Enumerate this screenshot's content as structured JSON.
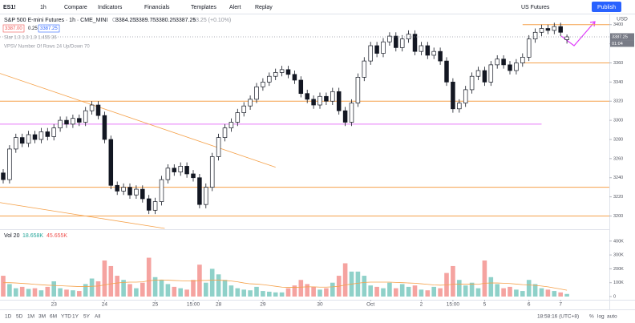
{
  "toolbar": {
    "symbol": "ES1!",
    "interval": "1h",
    "items": [
      "Compare",
      "Indicators",
      "Financials",
      "Templates",
      "Alert",
      "Replay"
    ],
    "market": "US Futures",
    "publish": "Publish"
  },
  "legend": {
    "title": "S&P 500 E-mini Futures · 1h · CME_MINI",
    "ohlc_letters": [
      "O",
      "H",
      "L",
      "C"
    ],
    "change": "+3.25 (+0.10%)",
    "bid": "3387.00",
    "spread": "0.25",
    "indicator_1": "Slar 1.3 1.3 1.3 1.455 36",
    "indicator_2": "VPSV Number Of Rows 24 Up/Down 70"
  },
  "bottom_bar": {
    "ranges": [
      "1D",
      "5D",
      "1M",
      "3M",
      "6M",
      "YTD",
      "1Y",
      "5Y",
      "All"
    ],
    "clock": "18:58:16 (UTC+8)",
    "scale_options": [
      "%",
      "log",
      "auto"
    ]
  },
  "chart_data": {
    "type": "candlestick",
    "currency": "USD",
    "countdown": "01:04",
    "ylim": [
      3187,
      3409
    ],
    "yticks": [
      3200,
      3220,
      3240,
      3260,
      3280,
      3300,
      3320,
      3340,
      3360,
      3380,
      3400
    ],
    "xticks": [
      {
        "value": 8,
        "label": "23"
      },
      {
        "value": 16,
        "label": "24"
      },
      {
        "value": 24,
        "label": "25"
      },
      {
        "value": 30,
        "label": "15:00"
      },
      {
        "value": 34,
        "label": "28"
      },
      {
        "value": 41,
        "label": "29"
      },
      {
        "value": 50,
        "label": "30"
      },
      {
        "value": 58,
        "label": "Oct"
      },
      {
        "value": 66,
        "label": "2"
      },
      {
        "value": 71,
        "label": "15:00"
      },
      {
        "value": 76,
        "label": "5"
      },
      {
        "value": 83,
        "label": "6"
      },
      {
        "value": 88,
        "label": "7"
      }
    ],
    "open": [
      3245,
      3238,
      3270,
      3282,
      3276,
      3285,
      3280,
      3288,
      3283,
      3292,
      3300,
      3296,
      3302,
      3298,
      3310,
      3316,
      3305,
      3280,
      3232,
      3226,
      3230,
      3222,
      3228,
      3218,
      3206,
      3215,
      3238,
      3250,
      3246,
      3252,
      3244,
      3240,
      3212,
      3230,
      3262,
      3282,
      3292,
      3298,
      3308,
      3315,
      3322,
      3335,
      3340,
      3346,
      3350,
      3353,
      3348,
      3342,
      3328,
      3322,
      3316,
      3325,
      3320,
      3330,
      3310,
      3298,
      3318,
      3345,
      3362,
      3378,
      3370,
      3382,
      3388,
      3376,
      3385,
      3390,
      3372,
      3378,
      3368,
      3372,
      3362,
      3340,
      3312,
      3318,
      3332,
      3346,
      3352,
      3340,
      3358,
      3364,
      3358,
      3352,
      3360,
      3366,
      3385,
      3392,
      3396,
      3394,
      3398,
      3384.25
    ],
    "high": [
      3249,
      3274,
      3286,
      3286,
      3289,
      3289,
      3292,
      3292,
      3296,
      3304,
      3304,
      3306,
      3306,
      3314,
      3320,
      3320,
      3309,
      3284,
      3236,
      3234,
      3234,
      3232,
      3232,
      3222,
      3219,
      3242,
      3254,
      3254,
      3256,
      3256,
      3248,
      3244,
      3234,
      3266,
      3286,
      3296,
      3302,
      3312,
      3319,
      3326,
      3339,
      3344,
      3350,
      3354,
      3357,
      3357,
      3352,
      3346,
      3332,
      3326,
      3329,
      3329,
      3334,
      3334,
      3314,
      3322,
      3349,
      3366,
      3382,
      3382,
      3386,
      3392,
      3392,
      3389,
      3394,
      3394,
      3382,
      3382,
      3376,
      3376,
      3366,
      3344,
      3322,
      3336,
      3350,
      3356,
      3356,
      3362,
      3368,
      3368,
      3362,
      3364,
      3370,
      3389,
      3396,
      3400,
      3400,
      3402,
      3402,
      3389.75
    ],
    "low": [
      3234,
      3234,
      3266,
      3272,
      3272,
      3276,
      3276,
      3279,
      3279,
      3288,
      3292,
      3292,
      3294,
      3294,
      3306,
      3301,
      3276,
      3228,
      3222,
      3222,
      3218,
      3218,
      3214,
      3202,
      3202,
      3211,
      3234,
      3242,
      3242,
      3240,
      3236,
      3208,
      3208,
      3226,
      3258,
      3278,
      3288,
      3294,
      3304,
      3311,
      3318,
      3331,
      3336,
      3342,
      3346,
      3344,
      3338,
      3324,
      3318,
      3312,
      3312,
      3316,
      3316,
      3306,
      3294,
      3294,
      3314,
      3341,
      3358,
      3366,
      3366,
      3378,
      3372,
      3372,
      3381,
      3368,
      3368,
      3364,
      3364,
      3358,
      3336,
      3308,
      3308,
      3314,
      3328,
      3342,
      3336,
      3336,
      3354,
      3354,
      3348,
      3348,
      3356,
      3362,
      3381,
      3388,
      3390,
      3390,
      3388,
      3380.25
    ],
    "close": [
      3238,
      3270,
      3282,
      3276,
      3285,
      3280,
      3288,
      3283,
      3292,
      3300,
      3296,
      3302,
      3298,
      3310,
      3316,
      3305,
      3280,
      3232,
      3226,
      3230,
      3222,
      3228,
      3218,
      3206,
      3215,
      3238,
      3250,
      3246,
      3252,
      3244,
      3240,
      3212,
      3230,
      3262,
      3282,
      3292,
      3298,
      3308,
      3315,
      3322,
      3335,
      3340,
      3346,
      3350,
      3353,
      3348,
      3342,
      3328,
      3322,
      3316,
      3325,
      3320,
      3330,
      3310,
      3298,
      3318,
      3345,
      3362,
      3378,
      3370,
      3382,
      3388,
      3376,
      3385,
      3390,
      3372,
      3378,
      3368,
      3372,
      3362,
      3340,
      3312,
      3318,
      3332,
      3346,
      3352,
      3340,
      3358,
      3364,
      3358,
      3352,
      3360,
      3366,
      3385,
      3392,
      3396,
      3394,
      3398,
      3392,
      3387.25
    ],
    "levels": [
      {
        "value": 3400,
        "color": "#f5a14a",
        "from": 82
      },
      {
        "value": 3360,
        "color": "#f5a14a",
        "from": 82
      },
      {
        "value": 3320,
        "color": "#f5a14a"
      },
      {
        "value": 3230,
        "color": "#f5a14a"
      },
      {
        "value": 3200,
        "color": "#f5a14a"
      },
      {
        "value": 3296,
        "color": "#e879f9",
        "to": 85
      }
    ],
    "trendlines": [
      {
        "from": [
          -0.5,
          3349
        ],
        "to": [
          43,
          3251
        ],
        "color": "#f5a14a"
      },
      {
        "from": [
          -0.5,
          3214
        ],
        "to": [
          25.5,
          3187
        ],
        "color": "#f5a14a"
      }
    ],
    "volume_legend": {
      "name": "Vol 20",
      "value_label": "18.658K",
      "ma_label": "45.655K"
    },
    "vol_ylim": [
      0,
      474000
    ],
    "vol_yticks": [
      {
        "value": 0,
        "label": "0"
      },
      {
        "value": 100000,
        "label": "100K"
      },
      {
        "value": 200000,
        "label": "200K"
      },
      {
        "value": 300000,
        "label": "300K"
      },
      {
        "value": 400000,
        "label": "400K"
      }
    ],
    "volume": [
      150000,
      90000,
      60000,
      70000,
      55000,
      60000,
      45000,
      70000,
      110000,
      60000,
      50000,
      45000,
      40000,
      90000,
      130000,
      110000,
      260000,
      220000,
      150000,
      120000,
      90000,
      60000,
      100000,
      280000,
      140000,
      120000,
      90000,
      70000,
      60000,
      50000,
      120000,
      230000,
      100000,
      200000,
      160000,
      120000,
      80000,
      60000,
      50000,
      45000,
      70000,
      40000,
      35000,
      30000,
      30000,
      60000,
      80000,
      120000,
      90000,
      70000,
      50000,
      60000,
      100000,
      150000,
      240000,
      180000,
      180000,
      150000,
      80000,
      70000,
      60000,
      100000,
      60000,
      90000,
      70000,
      80000,
      50000,
      45000,
      70000,
      60000,
      170000,
      220000,
      120000,
      80000,
      100000,
      60000,
      260000,
      140000,
      90000,
      60000,
      70000,
      50000,
      40000,
      120000,
      90000,
      60000,
      50000,
      40000,
      30000,
      18658
    ],
    "volume_ma": [
      100000,
      100000,
      98000,
      95000,
      92000,
      88000,
      85000,
      82000,
      80000,
      78000,
      76000,
      74000,
      72000,
      72000,
      74000,
      76000,
      84000,
      92000,
      98000,
      102000,
      104000,
      104000,
      106000,
      114000,
      118000,
      120000,
      118000,
      116000,
      114000,
      112000,
      112000,
      116000,
      116000,
      118000,
      118000,
      116000,
      112000,
      106000,
      98000,
      92000,
      90000,
      86000,
      80000,
      74000,
      68000,
      66000,
      66000,
      68000,
      70000,
      70000,
      68000,
      68000,
      70000,
      74000,
      84000,
      90000,
      96000,
      102000,
      104000,
      104000,
      104000,
      104000,
      102000,
      100000,
      98000,
      96000,
      92000,
      88000,
      84000,
      82000,
      84000,
      88000,
      90000,
      90000,
      90000,
      88000,
      96000,
      98000,
      98000,
      96000,
      94000,
      90000,
      86000,
      84000,
      80000,
      76000,
      70000,
      62000,
      54000,
      45655
    ]
  }
}
